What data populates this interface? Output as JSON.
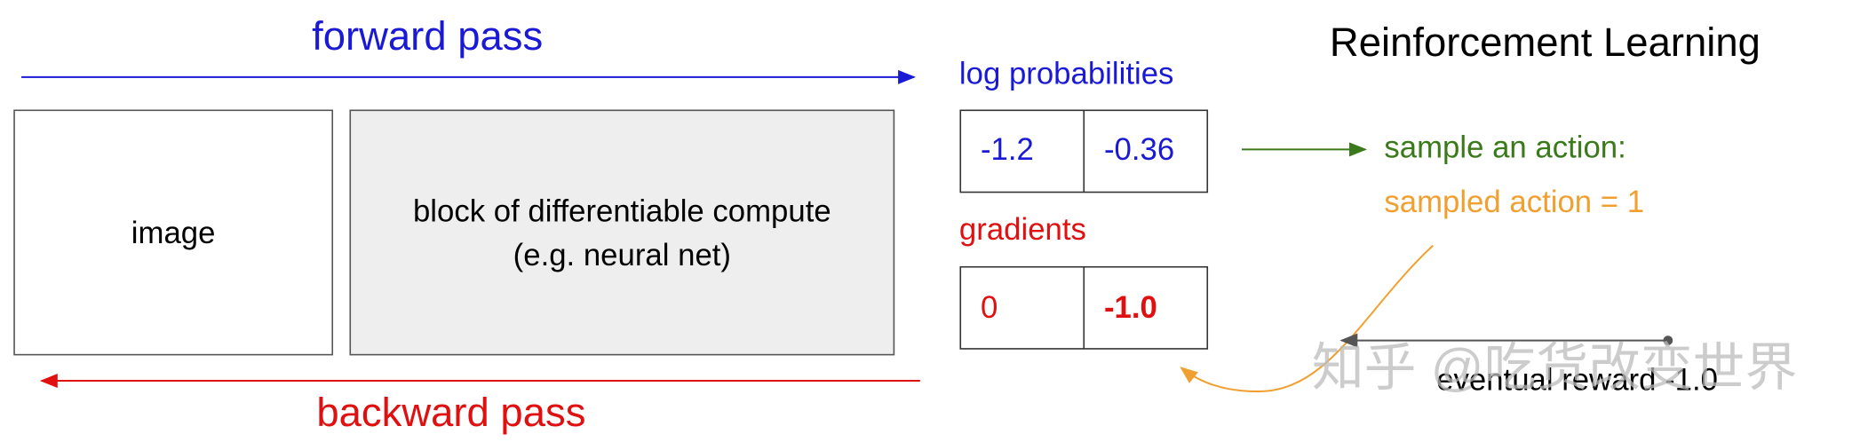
{
  "title": "Reinforcement Learning",
  "forward_pass": "forward pass",
  "backward_pass": "backward pass",
  "image_box": "image",
  "compute_box": {
    "line1": "block of differentiable compute",
    "line2": "(e.g. neural net)"
  },
  "log_probabilities": {
    "label": "log probabilities",
    "values": [
      "-1.2",
      "-0.36"
    ]
  },
  "gradients": {
    "label": "gradients",
    "values": [
      "0",
      "-1.0"
    ]
  },
  "sample": {
    "label": "sample an action:",
    "action": "sampled action = 1"
  },
  "reward": "eventual reward -1.0",
  "watermark": "知乎 @吃货改变世界"
}
